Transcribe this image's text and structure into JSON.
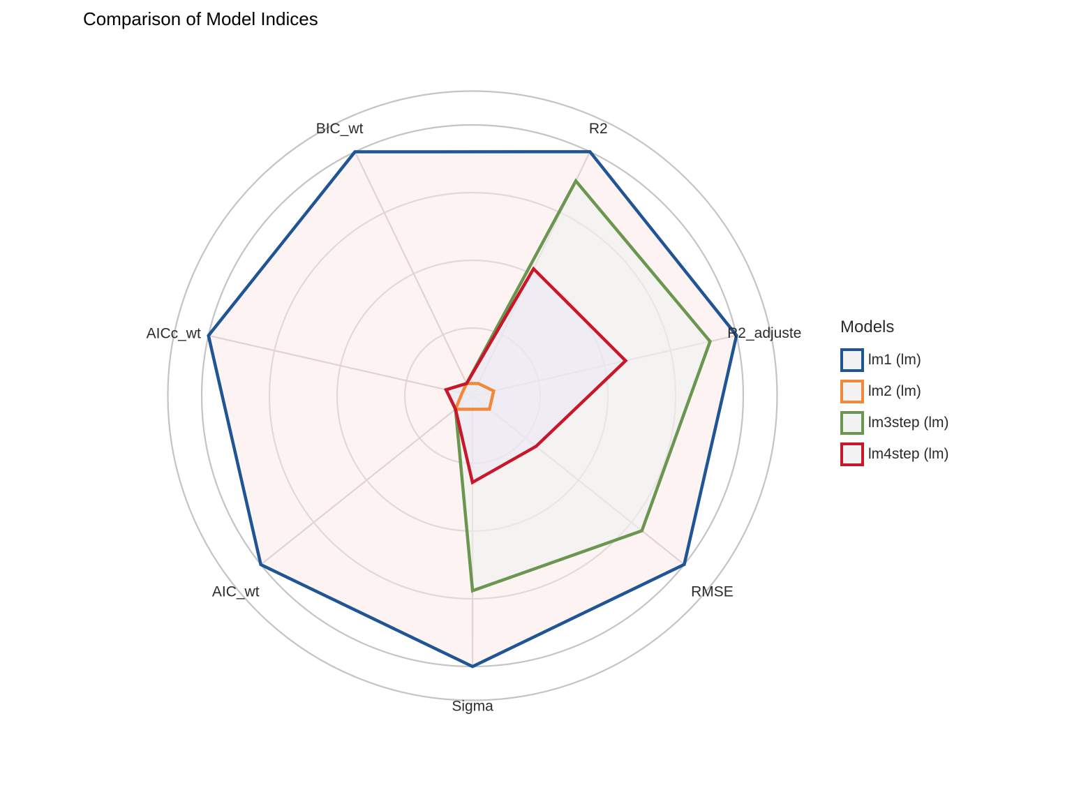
{
  "chart_data": {
    "type": "radar",
    "title": "Comparison of Model Indices",
    "axes": [
      "R2",
      "R2_adjuste",
      "RMSE",
      "Sigma",
      "AIC_wt",
      "AICc_wt",
      "BIC_wt"
    ],
    "rlim": [
      0,
      1
    ],
    "grid": true,
    "legend_title": "Models",
    "legend_position": "right",
    "series": [
      {
        "name": "lm1 (lm)",
        "color": "#1f5595",
        "fill": "#fbeaea",
        "values": [
          1.0,
          1.0,
          1.0,
          1.0,
          1.0,
          1.0,
          1.0
        ]
      },
      {
        "name": "lm2 (lm)",
        "color": "#f0893a",
        "fill": "#f2f2f2",
        "values": [
          0.05,
          0.08,
          0.08,
          0.05,
          0.08,
          0.04,
          0.05
        ]
      },
      {
        "name": "lm3step (lm)",
        "color": "#6a9650",
        "fill": "#eef2ef",
        "values": [
          0.88,
          0.9,
          0.8,
          0.72,
          0.08,
          0.1,
          0.05
        ]
      },
      {
        "name": "lm4step (lm)",
        "color": "#c8172a",
        "fill": "#eae6f4",
        "values": [
          0.52,
          0.58,
          0.3,
          0.32,
          0.08,
          0.1,
          0.05
        ]
      }
    ]
  }
}
